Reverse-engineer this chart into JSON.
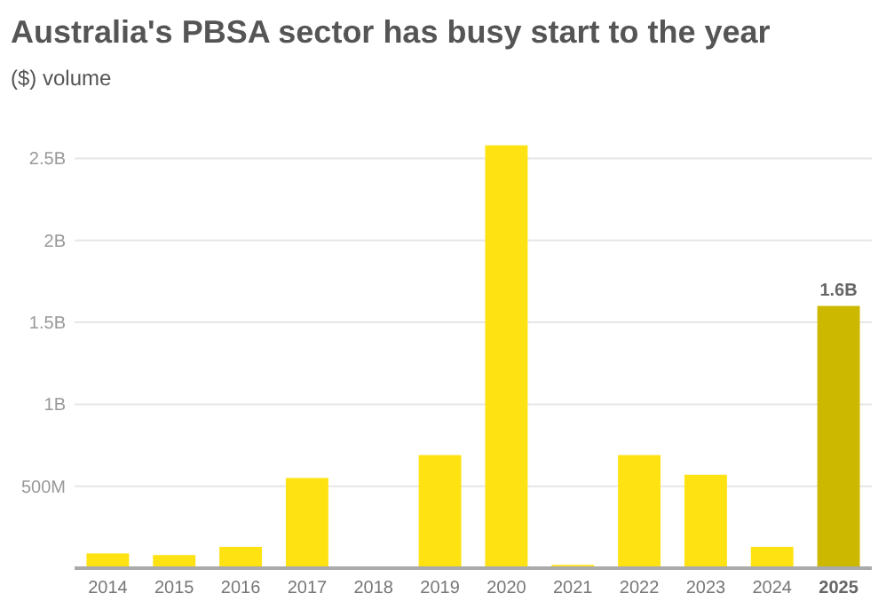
{
  "chart_data": {
    "type": "bar",
    "title": "Australia's PBSA sector has busy start to the year",
    "subtitle": "($) volume",
    "categories": [
      "2014",
      "2015",
      "2016",
      "2017",
      "2018",
      "2019",
      "2020",
      "2021",
      "2022",
      "2023",
      "2024",
      "2025"
    ],
    "values": [
      90000000,
      80000000,
      130000000,
      550000000,
      10000000,
      690000000,
      2580000000,
      20000000,
      690000000,
      570000000,
      130000000,
      1600000000
    ],
    "colors": [
      "#ffe211",
      "#ffe211",
      "#ffe211",
      "#ffe211",
      "#ffe211",
      "#ffe211",
      "#ffe211",
      "#ffe211",
      "#ffe211",
      "#ffe211",
      "#ffe211",
      "#cdb800"
    ],
    "value_labels": [
      null,
      null,
      null,
      null,
      null,
      null,
      null,
      null,
      null,
      null,
      null,
      "1.6B"
    ],
    "ylim": [
      0,
      2600000000
    ],
    "yticks": [
      {
        "value": 500000000,
        "label": "500M"
      },
      {
        "value": 1000000000,
        "label": "1B"
      },
      {
        "value": 1500000000,
        "label": "1.5B"
      },
      {
        "value": 2000000000,
        "label": "2B"
      },
      {
        "value": 2500000000,
        "label": "2.5B"
      }
    ],
    "grid": "y"
  }
}
